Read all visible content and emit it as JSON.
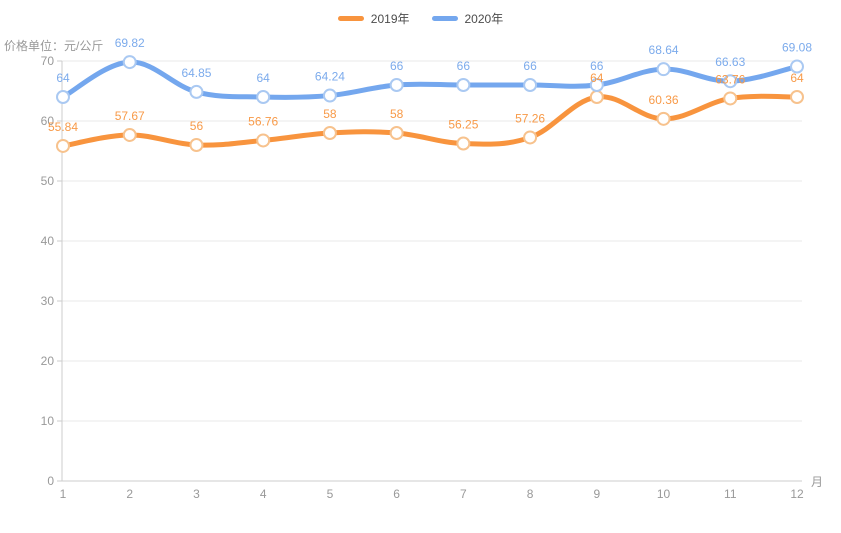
{
  "chart_data": {
    "type": "line",
    "title": "价格单位：元/公斤",
    "x_unit_label": "月",
    "categories": [
      "1",
      "2",
      "3",
      "4",
      "5",
      "6",
      "7",
      "8",
      "9",
      "10",
      "11",
      "12"
    ],
    "series": [
      {
        "name": "2019年",
        "values": [
          55.84,
          57.67,
          56,
          56.76,
          58,
          58,
          56.25,
          57.26,
          64,
          60.36,
          63.76,
          64
        ],
        "color": "#f8943e",
        "marker_border": "#f7c28d",
        "label_color": "#f89a48"
      },
      {
        "name": "2020年",
        "values": [
          64,
          69.82,
          64.85,
          64,
          64.24,
          66,
          66,
          66,
          66,
          68.64,
          66.63,
          69.08
        ],
        "color": "#74a7ee",
        "marker_border": "#aac9f2",
        "label_color": "#7cabec"
      }
    ],
    "ylim": [
      0,
      70
    ],
    "y_ticks": [
      0,
      10,
      20,
      30,
      40,
      50,
      60,
      70
    ],
    "grid": true,
    "smooth": true,
    "legend_position": "top",
    "colors": {
      "background": "#ffffff",
      "axis_line": "#cccccc",
      "grid_line": "#e8e8e8",
      "tick_text": "#999999",
      "title_text": "#999999",
      "legend_text": "#4c4c4c",
      "marker_fill": "#ffffff"
    }
  }
}
